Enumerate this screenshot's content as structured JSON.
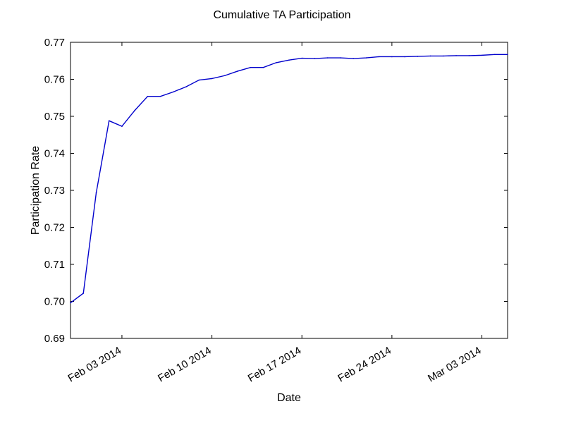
{
  "chart_data": {
    "type": "line",
    "title": "Cumulative TA Participation",
    "xlabel": "Date",
    "ylabel": "Participation Rate",
    "x_start": "2014-01-30",
    "x_end": "2014-03-05",
    "xticks": [
      {
        "date": "2014-02-03",
        "label": "Feb 03 2014"
      },
      {
        "date": "2014-02-10",
        "label": "Feb 10 2014"
      },
      {
        "date": "2014-02-17",
        "label": "Feb 17 2014"
      },
      {
        "date": "2014-02-24",
        "label": "Feb 24 2014"
      },
      {
        "date": "2014-03-03",
        "label": "Mar 03 2014"
      }
    ],
    "ylim": [
      0.69,
      0.77
    ],
    "yticks": [
      "0.69",
      "0.70",
      "0.71",
      "0.72",
      "0.73",
      "0.74",
      "0.75",
      "0.76",
      "0.77"
    ],
    "grid": false,
    "series": [
      {
        "color": "#0000cc",
        "points": [
          {
            "x": "2014-01-30",
            "y": 0.6996
          },
          {
            "x": "2014-01-31",
            "y": 0.7022
          },
          {
            "x": "2014-02-01",
            "y": 0.7293
          },
          {
            "x": "2014-02-02",
            "y": 0.7488
          },
          {
            "x": "2014-02-03",
            "y": 0.7473
          },
          {
            "x": "2014-02-04",
            "y": 0.7516
          },
          {
            "x": "2014-02-05",
            "y": 0.7554
          },
          {
            "x": "2014-02-06",
            "y": 0.7554
          },
          {
            "x": "2014-02-07",
            "y": 0.7566
          },
          {
            "x": "2014-02-08",
            "y": 0.758
          },
          {
            "x": "2014-02-09",
            "y": 0.7598
          },
          {
            "x": "2014-02-10",
            "y": 0.7602
          },
          {
            "x": "2014-02-11",
            "y": 0.761
          },
          {
            "x": "2014-02-12",
            "y": 0.7622
          },
          {
            "x": "2014-02-13",
            "y": 0.7632
          },
          {
            "x": "2014-02-14",
            "y": 0.7632
          },
          {
            "x": "2014-02-15",
            "y": 0.7645
          },
          {
            "x": "2014-02-16",
            "y": 0.7652
          },
          {
            "x": "2014-02-17",
            "y": 0.7657
          },
          {
            "x": "2014-02-18",
            "y": 0.7656
          },
          {
            "x": "2014-02-19",
            "y": 0.7658
          },
          {
            "x": "2014-02-20",
            "y": 0.7658
          },
          {
            "x": "2014-02-21",
            "y": 0.7656
          },
          {
            "x": "2014-02-22",
            "y": 0.7658
          },
          {
            "x": "2014-02-23",
            "y": 0.7661
          },
          {
            "x": "2014-02-24",
            "y": 0.7661
          },
          {
            "x": "2014-02-25",
            "y": 0.7661
          },
          {
            "x": "2014-02-26",
            "y": 0.7662
          },
          {
            "x": "2014-02-27",
            "y": 0.7663
          },
          {
            "x": "2014-02-28",
            "y": 0.7663
          },
          {
            "x": "2014-03-01",
            "y": 0.7664
          },
          {
            "x": "2014-03-02",
            "y": 0.7664
          },
          {
            "x": "2014-03-03",
            "y": 0.7665
          },
          {
            "x": "2014-03-04",
            "y": 0.7667
          },
          {
            "x": "2014-03-05",
            "y": 0.7667
          }
        ]
      }
    ]
  }
}
